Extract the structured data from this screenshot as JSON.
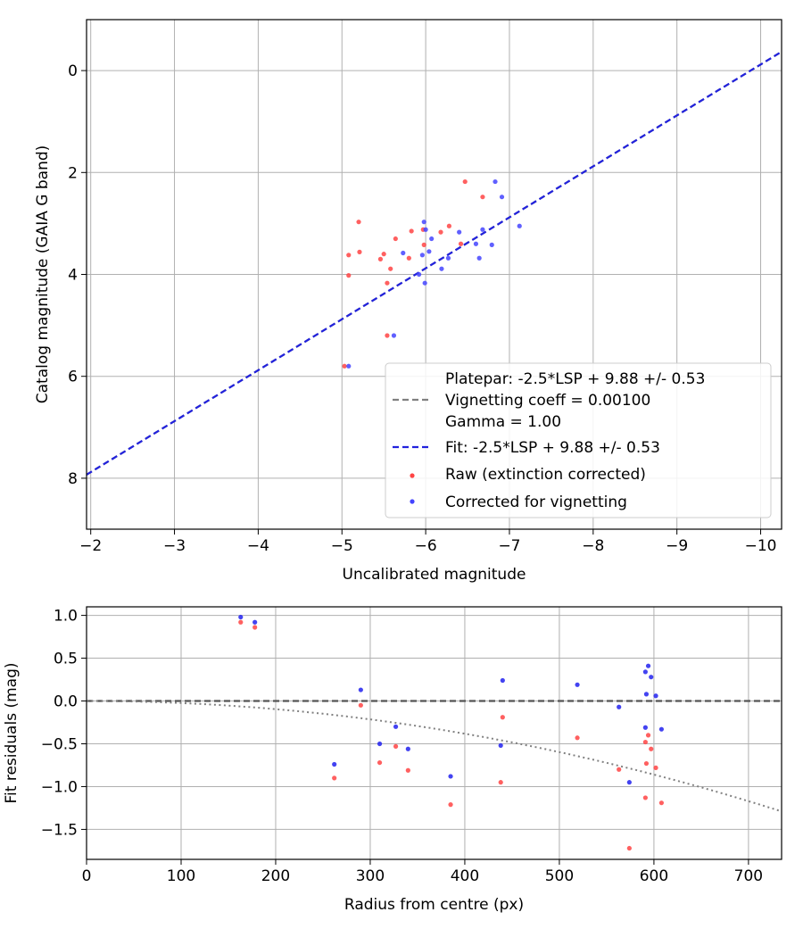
{
  "chart_data": [
    {
      "type": "scatter",
      "xlabel": "Uncalibrated magnitude",
      "ylabel": "Catalog magnitude (GAIA G band)",
      "xlim": [
        -1.95,
        -10.25
      ],
      "ylim": [
        9.0,
        -1.0
      ],
      "x_inverted": true,
      "y_inverted": true,
      "xticks": [
        -2,
        -3,
        -4,
        -5,
        -6,
        -7,
        -8,
        -9,
        -10
      ],
      "xtick_labels": [
        "−2",
        "−3",
        "−4",
        "−5",
        "−6",
        "−7",
        "−8",
        "−9",
        "−10"
      ],
      "yticks": [
        0,
        2,
        4,
        6,
        8
      ],
      "ytick_labels": [
        "0",
        "2",
        "4",
        "6",
        "8"
      ],
      "grid": true,
      "legend_position": "bottom-right",
      "lines": [
        {
          "name": "Platepar: -2.5*LSP + 9.88 +/- 0.53\nVignetting coeff = 0.00100\nGamma = 1.00",
          "style": "dashed",
          "color": "#808080",
          "x": [
            -1.95,
            -10.25
          ],
          "y": [
            7.93,
            -0.37
          ]
        },
        {
          "name": "Fit: -2.5*LSP + 9.88 +/- 0.53",
          "style": "dashed",
          "color": "#2222dd",
          "x": [
            -1.95,
            -10.25
          ],
          "y": [
            7.93,
            -0.37
          ]
        }
      ],
      "series": [
        {
          "name": "Raw (extinction corrected)",
          "color": "#ff4444",
          "points": [
            [
              -5.03,
              5.8
            ],
            [
              -5.08,
              4.02
            ],
            [
              -5.08,
              3.62
            ],
            [
              -5.2,
              2.97
            ],
            [
              -5.21,
              3.56
            ],
            [
              -5.46,
              3.7
            ],
            [
              -5.5,
              3.6
            ],
            [
              -5.54,
              4.17
            ],
            [
              -5.54,
              5.2
            ],
            [
              -5.58,
              3.89
            ],
            [
              -5.64,
              3.3
            ],
            [
              -5.8,
              3.68
            ],
            [
              -5.83,
              3.15
            ],
            [
              -5.97,
              3.12
            ],
            [
              -5.98,
              3.42
            ],
            [
              -6.18,
              3.17
            ],
            [
              -6.28,
              3.05
            ],
            [
              -6.42,
              3.4
            ],
            [
              -6.47,
              2.18
            ],
            [
              -6.68,
              2.48
            ]
          ]
        },
        {
          "name": "Corrected for vignetting",
          "color": "#4444ff",
          "points": [
            [
              -5.08,
              5.8
            ],
            [
              -5.62,
              5.2
            ],
            [
              -5.73,
              3.58
            ],
            [
              -5.92,
              4.0
            ],
            [
              -5.96,
              3.62
            ],
            [
              -5.98,
              2.97
            ],
            [
              -5.99,
              4.17
            ],
            [
              -6.0,
              3.12
            ],
            [
              -6.04,
              3.55
            ],
            [
              -6.07,
              3.3
            ],
            [
              -6.19,
              3.89
            ],
            [
              -6.27,
              3.68
            ],
            [
              -6.4,
              3.17
            ],
            [
              -6.6,
              3.4
            ],
            [
              -6.64,
              3.68
            ],
            [
              -6.68,
              3.12
            ],
            [
              -6.79,
              3.42
            ],
            [
              -6.83,
              2.18
            ],
            [
              -6.91,
              2.48
            ],
            [
              -7.12,
              3.05
            ]
          ]
        }
      ]
    },
    {
      "type": "scatter",
      "xlabel": "Radius from centre (px)",
      "ylabel": "Fit residuals (mag)",
      "xlim": [
        0,
        735
      ],
      "ylim": [
        -1.85,
        1.1
      ],
      "xticks": [
        0,
        100,
        200,
        300,
        400,
        500,
        600,
        700
      ],
      "xtick_labels": [
        "0",
        "100",
        "200",
        "300",
        "400",
        "500",
        "600",
        "700"
      ],
      "yticks": [
        1.0,
        0.5,
        0.0,
        -0.5,
        -1.0,
        -1.5
      ],
      "ytick_labels": [
        "1.0",
        "0.5",
        "0.0",
        "−0.5",
        "−1.0",
        "−1.5"
      ],
      "grid": true,
      "lines": [
        {
          "style": "dashed",
          "color": "#555555",
          "x": [
            0,
            735
          ],
          "y": [
            0,
            0
          ]
        },
        {
          "style": "dotted",
          "color": "#808080",
          "function": "vignetting_curve",
          "x": [
            0,
            735
          ],
          "y": [
            0,
            -1.29
          ]
        }
      ],
      "series": [
        {
          "name": "Raw (extinction corrected)",
          "color": "#ff4444",
          "points": [
            [
              163,
              0.92
            ],
            [
              178,
              0.86
            ],
            [
              262,
              -0.9
            ],
            [
              290,
              -0.05
            ],
            [
              310,
              -0.72
            ],
            [
              327,
              -0.53
            ],
            [
              340,
              -0.81
            ],
            [
              385,
              -1.21
            ],
            [
              438,
              -0.95
            ],
            [
              440,
              -0.19
            ],
            [
              519,
              -0.43
            ],
            [
              563,
              -0.8
            ],
            [
              574,
              -1.72
            ],
            [
              591,
              -1.13
            ],
            [
              591,
              -0.48
            ],
            [
              592,
              -0.73
            ],
            [
              594,
              -0.4
            ],
            [
              597,
              -0.56
            ],
            [
              602,
              -0.78
            ],
            [
              608,
              -1.19
            ]
          ]
        },
        {
          "name": "Corrected for vignetting",
          "color": "#2222ee",
          "points": [
            [
              163,
              0.98
            ],
            [
              178,
              0.92
            ],
            [
              262,
              -0.74
            ],
            [
              290,
              0.13
            ],
            [
              310,
              -0.5
            ],
            [
              327,
              -0.3
            ],
            [
              340,
              -0.56
            ],
            [
              385,
              -0.88
            ],
            [
              438,
              -0.52
            ],
            [
              440,
              0.24
            ],
            [
              519,
              0.19
            ],
            [
              563,
              -0.07
            ],
            [
              574,
              -0.95
            ],
            [
              591,
              -0.31
            ],
            [
              591,
              0.34
            ],
            [
              592,
              0.08
            ],
            [
              594,
              0.41
            ],
            [
              597,
              0.28
            ],
            [
              602,
              0.06
            ],
            [
              608,
              -0.33
            ]
          ]
        }
      ]
    }
  ]
}
